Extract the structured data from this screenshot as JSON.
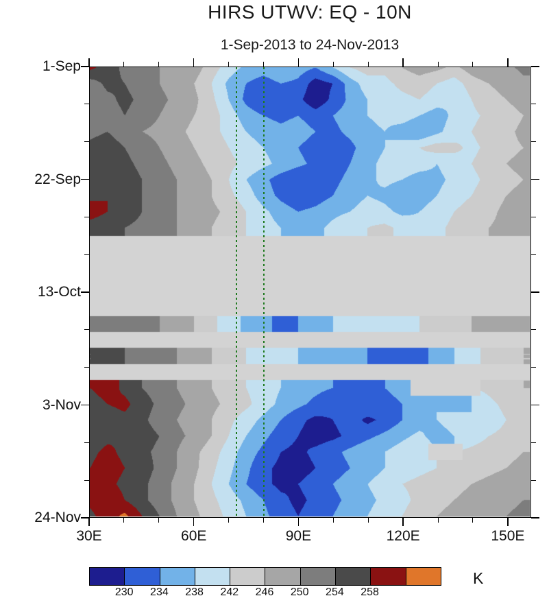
{
  "header": {
    "title": "HIRS UTWV: EQ - 10N",
    "subtitle": "1-Sep-2013 to 24-Nov-2013"
  },
  "colorbar": {
    "unit": "K",
    "labels": [
      "230",
      "234",
      "238",
      "242",
      "246",
      "250",
      "254",
      "258"
    ],
    "colors": [
      "#1d1d8f",
      "#2f5fd6",
      "#72b2e8",
      "#c3e0f0",
      "#cccccc",
      "#a6a6a6",
      "#7d7d7d",
      "#4a4a4a",
      "#8a1212",
      "#e0762a"
    ]
  },
  "chart_data": {
    "type": "heatmap",
    "title": "HIRS UTWV: EQ - 10N",
    "subtitle": "1-Sep-2013 to 24-Nov-2013",
    "unit": "K",
    "x_tick_labels": [
      "30E",
      "60E",
      "90E",
      "120E",
      "150E"
    ],
    "x_tick_values": [
      30,
      60,
      90,
      120,
      150
    ],
    "x_minor_step": 10,
    "y_tick_labels": [
      "1-Sep",
      "22-Sep",
      "13-Oct",
      "3-Nov",
      "24-Nov"
    ],
    "y_tick_days": [
      0,
      21,
      42,
      63,
      84
    ],
    "y_minor_step_days": 7,
    "x_axis_range": [
      30,
      156.7
    ],
    "time_span_days": 84,
    "lon_start": 30,
    "lon_step": 5,
    "time_step_days": 3,
    "levels": [
      230,
      234,
      238,
      242,
      246,
      250,
      254,
      258,
      262
    ],
    "colors": [
      "#1d1d8f",
      "#2f5fd6",
      "#72b2e8",
      "#c3e0f0",
      "#cccccc",
      "#a6a6a6",
      "#7d7d7d",
      "#4a4a4a",
      "#8a1212",
      "#e0762a"
    ],
    "missing_color": "#d3d3d3",
    "reference_lines_x": [
      72,
      80
    ],
    "reference_line_color": "#1e7a1e",
    "values": [
      [
        259,
        256,
        253,
        251,
        250,
        249,
        248,
        244,
        240,
        237,
        236,
        238,
        236,
        234,
        238,
        242,
        244,
        243,
        246,
        248,
        247,
        245,
        248,
        250,
        249,
        251
      ],
      [
        252,
        255,
        254,
        252,
        250,
        248,
        246,
        242,
        237,
        234,
        232,
        234,
        233,
        228,
        230,
        236,
        240,
        241,
        243,
        244,
        242,
        240,
        244,
        246,
        247,
        249
      ],
      [
        250,
        253,
        255,
        253,
        251,
        249,
        247,
        243,
        238,
        233,
        230,
        232,
        231,
        227,
        231,
        235,
        238,
        240,
        241,
        242,
        240,
        238,
        242,
        245,
        246,
        248
      ],
      [
        251,
        252,
        254,
        252,
        250,
        248,
        246,
        244,
        240,
        236,
        234,
        233,
        234,
        232,
        234,
        236,
        238,
        239,
        240,
        238,
        236,
        239,
        241,
        243,
        244,
        246
      ],
      [
        253,
        254,
        252,
        250,
        249,
        247,
        245,
        243,
        241,
        238,
        236,
        235,
        236,
        234,
        233,
        235,
        237,
        238,
        236,
        234,
        237,
        240,
        242,
        244,
        245,
        247
      ],
      [
        255,
        256,
        254,
        252,
        250,
        248,
        246,
        244,
        242,
        240,
        238,
        236,
        234,
        232,
        231,
        233,
        236,
        238,
        240,
        242,
        244,
        243,
        241,
        243,
        245,
        246
      ],
      [
        256,
        257,
        255,
        253,
        251,
        249,
        247,
        245,
        243,
        241,
        239,
        237,
        235,
        233,
        232,
        234,
        237,
        239,
        241,
        240,
        238,
        240,
        242,
        244,
        246,
        247
      ],
      [
        254,
        255,
        256,
        254,
        252,
        250,
        248,
        246,
        242,
        238,
        235,
        232,
        230,
        231,
        233,
        235,
        237,
        239,
        238,
        236,
        237,
        239,
        241,
        243,
        245,
        246
      ],
      [
        257,
        258,
        256,
        254,
        252,
        250,
        248,
        246,
        243,
        240,
        236,
        233,
        231,
        232,
        234,
        236,
        238,
        237,
        235,
        236,
        238,
        240,
        242,
        244,
        246,
        247
      ],
      [
        260,
        258,
        256,
        254,
        252,
        250,
        249,
        247,
        245,
        242,
        239,
        236,
        234,
        235,
        237,
        238,
        240,
        239,
        237,
        238,
        240,
        242,
        244,
        245,
        247,
        248
      ],
      [
        256,
        255,
        254,
        253,
        251,
        250,
        248,
        246,
        244,
        242,
        240,
        238,
        236,
        237,
        239,
        241,
        242,
        243,
        241,
        239,
        241,
        243,
        245,
        246,
        247,
        248
      ],
      null,
      null,
      null,
      null,
      null,
      [
        253,
        254,
        253,
        251,
        250,
        248,
        246,
        243,
        240,
        237,
        235,
        233,
        234,
        236,
        238,
        240,
        242,
        241,
        240,
        242,
        244,
        245,
        246,
        247,
        248,
        249
      ],
      null,
      [
        254,
        255,
        254,
        252,
        251,
        250,
        248,
        246,
        244,
        242,
        240,
        239,
        238,
        237,
        236,
        235,
        234,
        233,
        234,
        233,
        235,
        238,
        241,
        243,
        245,
        246
      ],
      null,
      [
        258,
        260,
        257,
        254,
        252,
        250,
        248,
        246,
        244,
        242,
        240,
        238,
        236,
        235,
        234,
        233,
        232,
        234,
        236,
        null,
        null,
        null,
        null,
        243,
        245,
        246
      ],
      [
        256,
        258,
        259,
        256,
        253,
        251,
        249,
        247,
        245,
        243,
        240,
        237,
        235,
        233,
        231,
        232,
        234,
        232,
        234,
        236,
        238,
        236,
        238,
        241,
        243,
        245
      ],
      [
        254,
        256,
        257,
        255,
        252,
        250,
        248,
        246,
        243,
        240,
        237,
        234,
        231,
        229,
        230,
        232,
        229,
        231,
        234,
        236,
        238,
        240,
        238,
        240,
        242,
        244
      ],
      [
        255,
        257,
        258,
        256,
        254,
        251,
        249,
        246,
        242,
        238,
        235,
        232,
        230,
        228,
        229,
        231,
        233,
        235,
        237,
        239,
        236,
        238,
        240,
        242,
        243,
        245
      ],
      [
        257,
        259,
        257,
        255,
        253,
        250,
        247,
        244,
        240,
        236,
        233,
        230,
        229,
        231,
        233,
        235,
        237,
        238,
        240,
        242,
        null,
        null,
        243,
        244,
        245,
        246
      ],
      [
        258,
        260,
        258,
        256,
        253,
        250,
        247,
        243,
        239,
        235,
        231,
        229,
        228,
        230,
        232,
        234,
        236,
        238,
        240,
        241,
        242,
        243,
        244,
        245,
        246,
        247
      ],
      [
        261,
        259,
        257,
        255,
        252,
        249,
        246,
        242,
        238,
        234,
        231,
        229,
        230,
        232,
        234,
        236,
        238,
        240,
        242,
        243,
        244,
        245,
        246,
        247,
        248,
        249
      ],
      [
        259,
        261,
        258,
        255,
        252,
        249,
        246,
        243,
        240,
        237,
        234,
        231,
        229,
        231,
        233,
        235,
        237,
        239,
        241,
        243,
        245,
        246,
        247,
        248,
        249,
        250
      ],
      [
        257,
        260,
        263,
        258,
        254,
        250,
        247,
        244,
        241,
        238,
        235,
        232,
        230,
        232,
        234,
        236,
        238,
        240,
        242,
        244,
        246,
        247,
        248,
        249,
        250,
        251
      ]
    ]
  }
}
